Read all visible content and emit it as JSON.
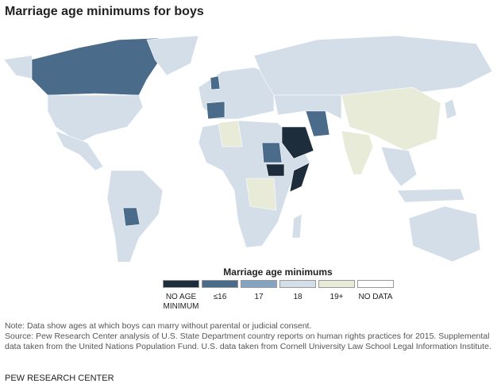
{
  "title": "Marriage age minimums for boys",
  "legend": {
    "title": "Marriage age minimums",
    "items": [
      {
        "label": "NO AGE MINIMUM",
        "color": "#1e2d3c"
      },
      {
        "label": "≤16",
        "color": "#4b6b8b"
      },
      {
        "label": "17",
        "color": "#86a3bf"
      },
      {
        "label": "18",
        "color": "#d3dee9"
      },
      {
        "label": "19+",
        "color": "#e9ebd9"
      },
      {
        "label": "NO DATA",
        "color": "#ffffff"
      }
    ]
  },
  "notes": [
    "Note: Data show ages at which boys can marry without parental or judicial consent.",
    "Source: Pew Research Center analysis of U.S. State Department country reports on human rights practices for 2015. Supplemental data taken from the United Nations Population Fund. U.S. data taken from Cornell University Law School Legal Information Institute."
  ],
  "source_org": "PEW RESEARCH CENTER"
}
